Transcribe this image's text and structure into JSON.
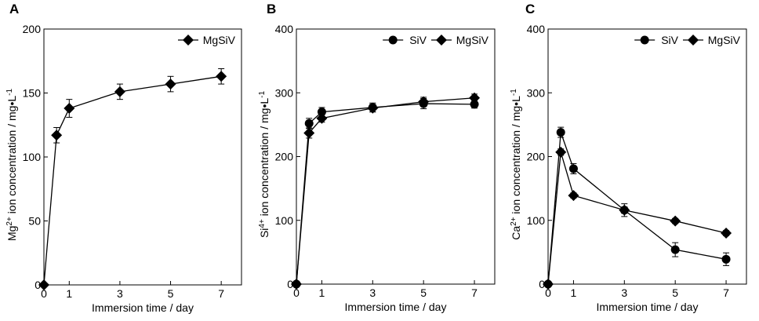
{
  "chart_data": [
    {
      "type": "line",
      "panel": "A",
      "xlabel": "Immersion time / day",
      "ylabel_parts": [
        "Mg",
        "2+",
        " ion concentration /  mg•L",
        "-1"
      ],
      "xlim": [
        0,
        7.8
      ],
      "ylim": [
        0,
        200
      ],
      "xticks": [
        0,
        1,
        3,
        5,
        7
      ],
      "yticks": [
        0,
        50,
        100,
        150,
        200
      ],
      "legend_position": "top-right",
      "series": [
        {
          "name": "MgSiV",
          "marker": "diamond",
          "x": [
            0,
            0.5,
            1,
            3,
            5,
            7
          ],
          "y": [
            0,
            117,
            138,
            151,
            157,
            163
          ],
          "err": [
            0,
            6,
            7,
            6,
            6,
            6
          ]
        }
      ]
    },
    {
      "type": "line",
      "panel": "B",
      "xlabel": "Immersion time / day",
      "ylabel_parts": [
        "Si",
        "4+",
        " ion concentration /  mg•L",
        "-1"
      ],
      "xlim": [
        0,
        7.8
      ],
      "ylim": [
        0,
        400
      ],
      "xticks": [
        0,
        1,
        3,
        5,
        7
      ],
      "yticks": [
        0,
        100,
        200,
        300,
        400
      ],
      "legend_position": "top-right",
      "series": [
        {
          "name": "SiV",
          "marker": "circle",
          "x": [
            0,
            0.5,
            1,
            3,
            5,
            7
          ],
          "y": [
            0,
            252,
            270,
            277,
            283,
            282
          ],
          "err": [
            0,
            8,
            7,
            7,
            8,
            6
          ]
        },
        {
          "name": "MgSiV",
          "marker": "diamond",
          "x": [
            0,
            0.5,
            1,
            3,
            5,
            7
          ],
          "y": [
            0,
            237,
            260,
            276,
            286,
            292
          ],
          "err": [
            0,
            8,
            6,
            6,
            7,
            6
          ]
        }
      ]
    },
    {
      "type": "line",
      "panel": "C",
      "xlabel": "Immersion time / day",
      "ylabel_parts": [
        "Ca",
        "2+",
        " ion concentration /  mg•L",
        "-1"
      ],
      "xlim": [
        0,
        7.8
      ],
      "ylim": [
        0,
        400
      ],
      "xticks": [
        0,
        1,
        3,
        5,
        7
      ],
      "yticks": [
        0,
        100,
        200,
        300,
        400
      ],
      "legend_position": "top-right",
      "series": [
        {
          "name": "SiV",
          "marker": "circle",
          "x": [
            0,
            0.5,
            1,
            3,
            5,
            7
          ],
          "y": [
            0,
            238,
            181,
            116,
            54,
            39
          ],
          "err": [
            0,
            8,
            8,
            10,
            11,
            10
          ]
        },
        {
          "name": "MgSiV",
          "marker": "diamond",
          "x": [
            0,
            0.5,
            1,
            3,
            5,
            7
          ],
          "y": [
            0,
            207,
            139,
            116,
            99,
            80
          ],
          "err": [
            0,
            5,
            4,
            5,
            4,
            4
          ]
        }
      ]
    }
  ]
}
